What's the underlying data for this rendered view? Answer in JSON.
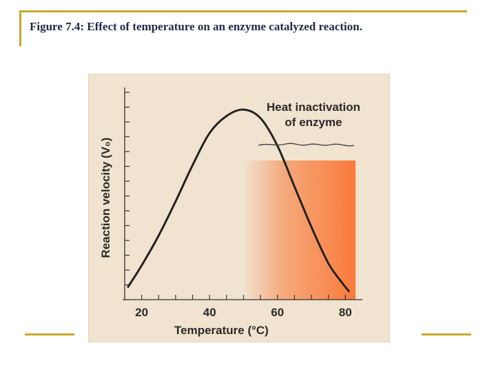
{
  "figure": {
    "caption": "Figure 7.4: Effect of temperature on an enzyme catalyzed reaction."
  },
  "colors": {
    "frame_accent": "#c8a92b",
    "panel_background": "#f0e3cf",
    "curve": "#222222",
    "inactivation_fill": "#f97a3a"
  },
  "chart_data": {
    "type": "line",
    "title": "",
    "xlabel": "Temperature (°C)",
    "ylabel": "Reaction velocity (V₀)",
    "x_ticks": [
      20,
      40,
      60,
      80
    ],
    "xlim": [
      15,
      85
    ],
    "ylim": [
      0,
      1
    ],
    "grid": false,
    "legend": "none",
    "annotation": {
      "line1": "Heat inactivation",
      "line2": "of enzyme",
      "region_x_start": 50,
      "region_x_end": 83
    },
    "series": [
      {
        "x": [
          16,
          20,
          25,
          30,
          35,
          40,
          45,
          50,
          55,
          60,
          65,
          70,
          75,
          79,
          81
        ],
        "y": [
          0.06,
          0.16,
          0.3,
          0.46,
          0.63,
          0.78,
          0.86,
          0.89,
          0.85,
          0.72,
          0.53,
          0.34,
          0.17,
          0.08,
          0.04
        ]
      }
    ]
  }
}
